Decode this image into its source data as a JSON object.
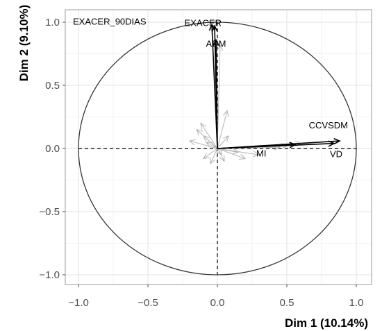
{
  "chart_data": {
    "type": "scatter",
    "subtype": "pca-correlation-circle",
    "title": "",
    "xlabel": "Dim 1 (10.14%)",
    "ylabel": "Dim 2 (9.10%)",
    "xlim": [
      -1.05,
      1.05
    ],
    "ylim": [
      -1.05,
      1.05
    ],
    "x_ticks": [
      -1.0,
      -0.5,
      0.0,
      0.5,
      1.0
    ],
    "y_ticks": [
      -1.0,
      -0.5,
      0.0,
      0.5,
      1.0
    ],
    "x_tick_labels": [
      "−1.0",
      "−0.5",
      "0.0",
      "0.5",
      "1.0"
    ],
    "y_tick_labels": [
      "−1.0",
      "−0.5",
      "0.0",
      "0.5",
      "1.0"
    ],
    "grid": true,
    "unit_circle": true,
    "labeled_vectors": [
      {
        "label": "EXACER_90DIAS",
        "x": -0.04,
        "y": 0.98
      },
      {
        "label": "EXACER",
        "x": -0.02,
        "y": 0.97
      },
      {
        "label": "ADM",
        "x": -0.01,
        "y": 0.86
      },
      {
        "label": "CCVSDM",
        "x": 0.88,
        "y": 0.06
      },
      {
        "label": "VD",
        "x": 0.84,
        "y": 0.04
      },
      {
        "label": "MI",
        "x": 0.56,
        "y": 0.03
      }
    ],
    "unlabeled_vectors": [
      {
        "x": 0.02,
        "y": 0.82
      },
      {
        "x": 0.5,
        "y": 0.02
      },
      {
        "x": 0.6,
        "y": 0.04
      },
      {
        "x": 0.45,
        "y": 0.01
      },
      {
        "x": -0.12,
        "y": 0.2
      },
      {
        "x": -0.15,
        "y": 0.15
      },
      {
        "x": -0.1,
        "y": 0.1
      },
      {
        "x": -0.2,
        "y": 0.06
      },
      {
        "x": -0.08,
        "y": 0.05
      },
      {
        "x": -0.1,
        "y": -0.08
      },
      {
        "x": -0.05,
        "y": -0.12
      },
      {
        "x": 0.05,
        "y": -0.1
      },
      {
        "x": 0.08,
        "y": 0.1
      },
      {
        "x": 0.2,
        "y": -0.08
      },
      {
        "x": 0.15,
        "y": -0.03
      },
      {
        "x": 0.3,
        "y": -0.05
      },
      {
        "x": 0.07,
        "y": 0.3
      },
      {
        "x": 0.03,
        "y": -0.05
      }
    ],
    "colors": {
      "labeled": "#000000",
      "unlabeled": "#b3b3b3",
      "grid": "#e6e6e6",
      "panel_border": "#999999",
      "circle": "#333333"
    }
  }
}
